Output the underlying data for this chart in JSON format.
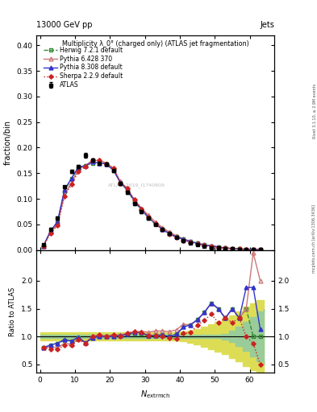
{
  "title_top": "13000 GeV pp",
  "title_right": "Jets",
  "main_ylabel": "fraction/bin",
  "ratio_ylabel": "Ratio to ATLAS",
  "watermark": "ATLAS_2019_I1740909",
  "right_label_top": "Rivet 3.1.10, ≥ 2.9M events",
  "right_label_bot": "mcplots.cern.ch [arXiv:1306.3436]",
  "plot_title": "Multiplicity λ_0° (charged only) (ATLAS jet fragmentation)",
  "ylim_main": [
    0.0,
    0.42
  ],
  "ylim_ratio": [
    0.35,
    2.55
  ],
  "xlim": [
    -1,
    67
  ],
  "atlas_x": [
    1,
    3,
    5,
    7,
    9,
    11,
    13,
    15,
    17,
    19,
    21,
    23,
    25,
    27,
    29,
    31,
    33,
    35,
    37,
    39,
    41,
    43,
    45,
    47,
    49,
    51,
    53,
    55,
    57,
    59,
    61,
    63
  ],
  "atlas_y": [
    0.01,
    0.04,
    0.062,
    0.123,
    0.153,
    0.163,
    0.185,
    0.175,
    0.17,
    0.168,
    0.155,
    0.13,
    0.113,
    0.09,
    0.075,
    0.063,
    0.05,
    0.04,
    0.032,
    0.025,
    0.018,
    0.014,
    0.01,
    0.007,
    0.005,
    0.004,
    0.003,
    0.002,
    0.0015,
    0.001,
    0.001,
    0.001
  ],
  "atlas_yerr": [
    0.002,
    0.003,
    0.003,
    0.003,
    0.003,
    0.003,
    0.004,
    0.003,
    0.003,
    0.003,
    0.003,
    0.003,
    0.003,
    0.003,
    0.003,
    0.003,
    0.002,
    0.002,
    0.002,
    0.002,
    0.002,
    0.001,
    0.001,
    0.001,
    0.001,
    0.001,
    0.001,
    0.001,
    0.001,
    0.001,
    0.001,
    0.001
  ],
  "herwig_x": [
    1,
    3,
    5,
    7,
    9,
    11,
    13,
    15,
    17,
    19,
    21,
    23,
    25,
    27,
    29,
    31,
    33,
    35,
    37,
    39,
    41,
    43,
    45,
    47,
    49,
    51,
    53,
    55,
    57,
    59,
    61,
    63
  ],
  "herwig_y": [
    0.008,
    0.036,
    0.055,
    0.115,
    0.14,
    0.16,
    0.165,
    0.17,
    0.17,
    0.168,
    0.156,
    0.132,
    0.117,
    0.094,
    0.079,
    0.063,
    0.051,
    0.041,
    0.032,
    0.026,
    0.021,
    0.017,
    0.013,
    0.01,
    0.008,
    0.006,
    0.004,
    0.003,
    0.002,
    0.0015,
    0.001,
    0.001
  ],
  "pythia6_x": [
    1,
    3,
    5,
    7,
    9,
    11,
    13,
    15,
    17,
    19,
    21,
    23,
    25,
    27,
    29,
    31,
    33,
    35,
    37,
    39,
    41,
    43,
    45,
    47,
    49,
    51,
    53,
    55,
    57,
    59,
    61,
    63
  ],
  "pythia6_y": [
    0.008,
    0.035,
    0.05,
    0.108,
    0.132,
    0.157,
    0.165,
    0.175,
    0.175,
    0.17,
    0.16,
    0.134,
    0.12,
    0.098,
    0.082,
    0.068,
    0.055,
    0.044,
    0.035,
    0.028,
    0.022,
    0.017,
    0.013,
    0.01,
    0.008,
    0.006,
    0.004,
    0.003,
    0.002,
    0.0015,
    0.001,
    0.001
  ],
  "pythia8_x": [
    1,
    3,
    5,
    7,
    9,
    11,
    13,
    15,
    17,
    19,
    21,
    23,
    25,
    27,
    29,
    31,
    33,
    35,
    37,
    39,
    41,
    43,
    45,
    47,
    49,
    51,
    53,
    55,
    57,
    59,
    61,
    63
  ],
  "pythia8_y": [
    0.008,
    0.037,
    0.055,
    0.117,
    0.14,
    0.162,
    0.165,
    0.172,
    0.17,
    0.168,
    0.156,
    0.132,
    0.118,
    0.096,
    0.08,
    0.064,
    0.051,
    0.041,
    0.032,
    0.026,
    0.021,
    0.017,
    0.013,
    0.01,
    0.008,
    0.006,
    0.004,
    0.003,
    0.002,
    0.0015,
    0.001,
    0.001
  ],
  "sherpa_x": [
    1,
    3,
    5,
    7,
    9,
    11,
    13,
    15,
    17,
    19,
    21,
    23,
    25,
    27,
    29,
    31,
    33,
    35,
    37,
    39,
    41,
    43,
    45,
    47,
    49,
    51,
    53,
    55,
    57,
    59,
    61,
    63
  ],
  "sherpa_y": [
    0.008,
    0.033,
    0.048,
    0.105,
    0.128,
    0.153,
    0.163,
    0.175,
    0.175,
    0.168,
    0.16,
    0.13,
    0.12,
    0.098,
    0.08,
    0.064,
    0.051,
    0.04,
    0.031,
    0.024,
    0.019,
    0.015,
    0.012,
    0.009,
    0.007,
    0.005,
    0.004,
    0.003,
    0.002,
    0.0015,
    0.001,
    0.001
  ],
  "ratio_herwig_x": [
    1,
    3,
    5,
    7,
    9,
    11,
    13,
    15,
    17,
    19,
    21,
    23,
    25,
    27,
    29,
    31,
    33,
    35,
    37,
    39,
    41,
    43,
    45,
    47,
    49,
    51,
    53,
    55,
    57,
    59,
    61,
    63
  ],
  "ratio_herwig_y": [
    0.8,
    0.85,
    0.88,
    0.93,
    0.92,
    0.98,
    0.89,
    0.97,
    1.0,
    1.0,
    1.0,
    1.02,
    1.04,
    1.04,
    1.05,
    1.0,
    1.02,
    1.03,
    1.0,
    1.04,
    1.17,
    1.21,
    1.3,
    1.43,
    1.6,
    1.5,
    1.33,
    1.5,
    1.33,
    1.5,
    1.0,
    1.0
  ],
  "ratio_pythia6_x": [
    1,
    3,
    5,
    7,
    9,
    11,
    13,
    15,
    17,
    19,
    21,
    23,
    25,
    27,
    29,
    31,
    33,
    35,
    37,
    39,
    41,
    43,
    45,
    47,
    49,
    51,
    53,
    55,
    57,
    59,
    61,
    63
  ],
  "ratio_pythia6_y": [
    0.8,
    0.82,
    0.8,
    0.88,
    0.86,
    0.96,
    0.89,
    1.0,
    1.03,
    1.01,
    1.03,
    1.03,
    1.06,
    1.09,
    1.09,
    1.08,
    1.1,
    1.1,
    1.09,
    1.12,
    1.22,
    1.21,
    1.3,
    1.43,
    1.6,
    1.5,
    1.33,
    1.5,
    1.33,
    1.5,
    2.5,
    2.0
  ],
  "ratio_pythia8_x": [
    1,
    3,
    5,
    7,
    9,
    11,
    13,
    15,
    17,
    19,
    21,
    23,
    25,
    27,
    29,
    31,
    33,
    35,
    37,
    39,
    41,
    43,
    45,
    47,
    49,
    51,
    53,
    55,
    57,
    59,
    61,
    63
  ],
  "ratio_pythia8_y": [
    0.8,
    0.85,
    0.88,
    0.95,
    0.92,
    0.99,
    0.89,
    0.98,
    1.0,
    1.0,
    1.0,
    1.02,
    1.04,
    1.07,
    1.07,
    1.02,
    1.02,
    1.03,
    1.0,
    1.04,
    1.17,
    1.21,
    1.3,
    1.43,
    1.6,
    1.5,
    1.33,
    1.5,
    1.33,
    1.88,
    1.88,
    1.13
  ],
  "ratio_sherpa_x": [
    1,
    3,
    5,
    7,
    9,
    11,
    13,
    15,
    17,
    19,
    21,
    23,
    25,
    27,
    29,
    31,
    33,
    35,
    37,
    39,
    41,
    43,
    45,
    47,
    49,
    51,
    53,
    55,
    57,
    59,
    61,
    63
  ],
  "ratio_sherpa_y": [
    0.8,
    0.78,
    0.77,
    0.85,
    0.84,
    0.94,
    0.88,
    1.0,
    1.03,
    1.0,
    1.03,
    1.0,
    1.06,
    1.09,
    1.07,
    1.02,
    1.02,
    1.0,
    0.97,
    0.96,
    1.06,
    1.07,
    1.2,
    1.29,
    1.4,
    1.25,
    1.33,
    1.25,
    1.33,
    1.0,
    0.88,
    0.5
  ],
  "band_yellow_x": [
    0,
    2,
    4,
    6,
    8,
    10,
    12,
    14,
    16,
    18,
    20,
    22,
    24,
    26,
    28,
    30,
    32,
    34,
    36,
    38,
    40,
    42,
    44,
    46,
    48,
    50,
    52,
    54,
    56,
    58,
    60,
    62,
    64
  ],
  "band_yellow_lo": [
    0.93,
    0.93,
    0.93,
    0.93,
    0.93,
    0.93,
    0.93,
    0.93,
    0.93,
    0.93,
    0.93,
    0.93,
    0.93,
    0.93,
    0.93,
    0.93,
    0.93,
    0.93,
    0.93,
    0.93,
    0.91,
    0.89,
    0.86,
    0.82,
    0.78,
    0.73,
    0.68,
    0.62,
    0.55,
    0.47,
    0.4,
    0.35,
    0.35
  ],
  "band_yellow_hi": [
    1.07,
    1.07,
    1.07,
    1.07,
    1.07,
    1.07,
    1.07,
    1.07,
    1.07,
    1.07,
    1.07,
    1.07,
    1.07,
    1.07,
    1.07,
    1.07,
    1.07,
    1.07,
    1.07,
    1.07,
    1.09,
    1.11,
    1.14,
    1.18,
    1.22,
    1.27,
    1.32,
    1.38,
    1.45,
    1.53,
    1.6,
    1.65,
    1.65
  ],
  "band_green_x": [
    0,
    2,
    4,
    6,
    8,
    10,
    12,
    14,
    16,
    18,
    20,
    22,
    24,
    26,
    28,
    30,
    32,
    34,
    36,
    38,
    40,
    42,
    44,
    46,
    48,
    50,
    52,
    54,
    56,
    58,
    60,
    62,
    64
  ],
  "band_green_lo": [
    0.97,
    0.97,
    0.97,
    0.97,
    0.97,
    0.97,
    0.97,
    0.97,
    0.97,
    0.97,
    0.97,
    0.97,
    0.97,
    0.97,
    0.97,
    0.97,
    0.97,
    0.97,
    0.97,
    0.97,
    0.97,
    0.97,
    0.97,
    0.97,
    0.97,
    0.97,
    0.95,
    0.9,
    0.83,
    0.74,
    0.65,
    0.55,
    0.5
  ],
  "band_green_hi": [
    1.03,
    1.03,
    1.03,
    1.03,
    1.03,
    1.03,
    1.03,
    1.03,
    1.03,
    1.03,
    1.03,
    1.03,
    1.03,
    1.03,
    1.03,
    1.03,
    1.03,
    1.03,
    1.03,
    1.03,
    1.03,
    1.03,
    1.03,
    1.03,
    1.03,
    1.03,
    1.05,
    1.1,
    1.17,
    1.26,
    1.35,
    1.45,
    1.5
  ],
  "color_atlas": "#000000",
  "color_herwig": "#338833",
  "color_pythia6": "#cc7777",
  "color_pythia8": "#3333cc",
  "color_sherpa": "#cc2222",
  "color_band_green": "#99cc99",
  "color_band_yellow": "#dddd55"
}
